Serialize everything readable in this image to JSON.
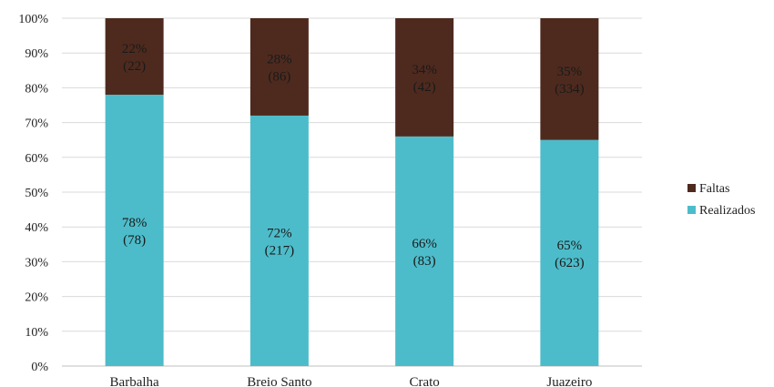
{
  "chart_data": {
    "type": "bar",
    "stacked": true,
    "percent_stacked": true,
    "categories": [
      "Barbalha",
      "Breio Santo",
      "Crato",
      "Juazeiro"
    ],
    "series": [
      {
        "name": "Realizados",
        "color": "#4dbcca",
        "values": [
          78,
          72,
          66,
          65
        ],
        "labels": [
          "78%",
          "72%",
          "66%",
          "65%"
        ],
        "counts": [
          "(78)",
          "(217)",
          "(83)",
          "(623)"
        ]
      },
      {
        "name": "Faltas",
        "color": "#4e2a1e",
        "values": [
          22,
          28,
          34,
          35
        ],
        "labels": [
          "22%",
          "28%",
          "34%",
          "35%"
        ],
        "counts": [
          "(22)",
          "(86)",
          "(42)",
          "(334)"
        ]
      }
    ],
    "yticks": [
      "0%",
      "10%",
      "20%",
      "30%",
      "40%",
      "50%",
      "60%",
      "70%",
      "80%",
      "90%",
      "100%"
    ],
    "ylim": [
      0,
      100
    ],
    "grid": true,
    "legend": [
      {
        "name": "Faltas",
        "color": "#4e2a1e"
      },
      {
        "name": "Realizados",
        "color": "#4dbcca"
      }
    ],
    "legend_position": "right"
  }
}
